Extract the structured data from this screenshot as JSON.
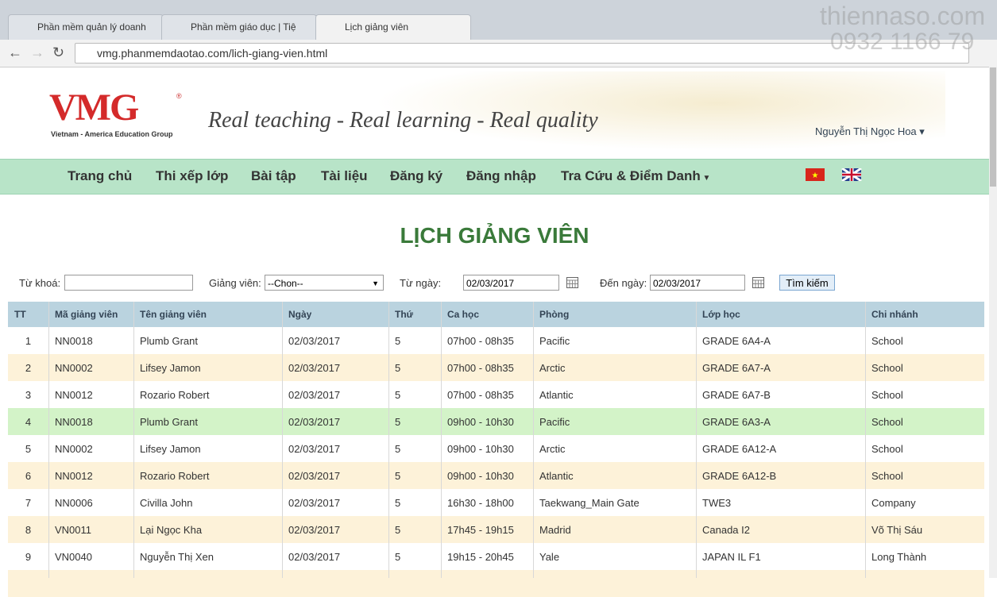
{
  "browser": {
    "tabs": [
      "Phần mềm quản lý doanh",
      "Phần mềm giáo dục | Tiệ",
      "Lịch giảng viên"
    ],
    "url": "vmg.phanmemdaotao.com/lich-giang-vien.html",
    "watermark": [
      "thiennaso.com",
      "0932 1166 79"
    ]
  },
  "header": {
    "logo": "VMG",
    "logo_mark": "®",
    "logo_sub": "Vietnam - America Education Group",
    "slogan": "Real teaching - Real learning - Real quality",
    "user": "Nguyễn Thị Ngọc Hoa"
  },
  "nav": [
    "Trang chủ",
    "Thi xếp lớp",
    "Bài tập",
    "Tài liệu",
    "Đăng ký",
    "Đăng nhập",
    "Tra Cứu & Điểm Danh"
  ],
  "page": {
    "title": "LỊCH GIẢNG VIÊN"
  },
  "filters": {
    "keyword_label": "Từ khoá:",
    "teacher_label": "Giảng viên:",
    "teacher_value": "--Chon--",
    "from_label": "Từ ngày:",
    "from_value": "02/03/2017",
    "to_label": "Đến ngày:",
    "to_value": "02/03/2017",
    "search_button": "Tìm kiếm"
  },
  "table": {
    "columns": [
      "TT",
      "Mã giảng viên",
      "Tên giảng viên",
      "Ngày",
      "Thứ",
      "Ca học",
      "Phòng",
      "Lớp học",
      "Chi nhánh"
    ],
    "rows": [
      [
        "1",
        "NN0018",
        "Plumb Grant",
        "02/03/2017",
        "5",
        "07h00 - 08h35",
        "Pacific",
        "GRADE 6A4-A",
        "School"
      ],
      [
        "2",
        "NN0002",
        "Lifsey Jamon",
        "02/03/2017",
        "5",
        "07h00 - 08h35",
        "Arctic",
        "GRADE 6A7-A",
        "School"
      ],
      [
        "3",
        "NN0012",
        "Rozario Robert",
        "02/03/2017",
        "5",
        "07h00 - 08h35",
        "Atlantic",
        "GRADE 6A7-B",
        "School"
      ],
      [
        "4",
        "NN0018",
        "Plumb Grant",
        "02/03/2017",
        "5",
        "09h00 - 10h30",
        "Pacific",
        "GRADE 6A3-A",
        "School"
      ],
      [
        "5",
        "NN0002",
        "Lifsey Jamon",
        "02/03/2017",
        "5",
        "09h00 - 10h30",
        "Arctic",
        "GRADE 6A12-A",
        "School"
      ],
      [
        "6",
        "NN0012",
        "Rozario Robert",
        "02/03/2017",
        "5",
        "09h00 - 10h30",
        "Atlantic",
        "GRADE 6A12-B",
        "School"
      ],
      [
        "7",
        "NN0006",
        "Civilla John",
        "02/03/2017",
        "5",
        "16h30 - 18h00",
        "Taekwang_Main Gate",
        "TWE3",
        "Company"
      ],
      [
        "8",
        "VN0011",
        "Lại Ngọc Kha",
        "02/03/2017",
        "5",
        "17h45 - 19h15",
        "Madrid",
        "Canada I2",
        "Võ Thị Sáu"
      ],
      [
        "9",
        "VN0040",
        "Nguyễn Thị Xen",
        "02/03/2017",
        "5",
        "19h15 - 20h45",
        "Yale",
        "JAPAN IL F1",
        "Long Thành"
      ]
    ]
  }
}
